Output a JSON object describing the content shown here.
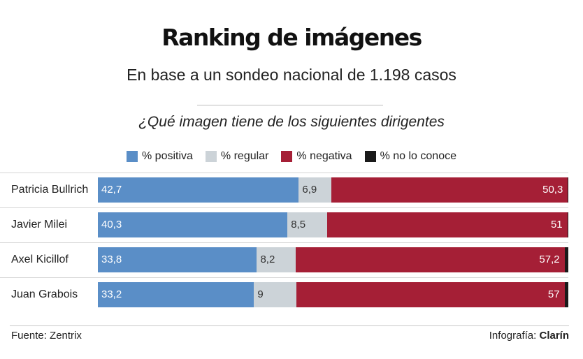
{
  "header": {
    "title": "Ranking de imágenes",
    "subtitle": "En base a un sondeo nacional de 1.198 casos",
    "question": "¿Qué imagen tiene de los siguientes dirigentes"
  },
  "legend": [
    {
      "label": "% positiva",
      "color": "#5a8ec7"
    },
    {
      "label": "% regular",
      "color": "#ccd3d8"
    },
    {
      "label": "% negativa",
      "color": "#a51f36"
    },
    {
      "label": "% no lo conoce",
      "color": "#1a1a1a"
    }
  ],
  "chart_data": {
    "type": "bar",
    "stacked": true,
    "orientation": "horizontal",
    "categories": [
      "Patricia Bullrich",
      "Javier Milei",
      "Axel Kicillof",
      "Juan Grabois"
    ],
    "series": [
      {
        "name": "% positiva",
        "values": [
          42.7,
          40.3,
          33.8,
          33.2
        ],
        "labels": [
          "42,7",
          "40,3",
          "33,8",
          "33,2"
        ]
      },
      {
        "name": "% regular",
        "values": [
          6.9,
          8.5,
          8.2,
          9
        ],
        "labels": [
          "6,9",
          "8,5",
          "8,2",
          "9"
        ]
      },
      {
        "name": "% negativa",
        "values": [
          50.3,
          51,
          57.2,
          57
        ],
        "labels": [
          "50,3",
          "51",
          "57,2",
          "57"
        ]
      },
      {
        "name": "% no lo conoce",
        "values": [
          0.1,
          0.2,
          0.8,
          0.8
        ],
        "labels": [
          "",
          "",
          "",
          ""
        ]
      }
    ],
    "xlim": [
      0,
      100
    ]
  },
  "footer": {
    "source": "Fuente: Zentrix",
    "credit_prefix": "Infografía: ",
    "credit_brand": "Clarín"
  }
}
